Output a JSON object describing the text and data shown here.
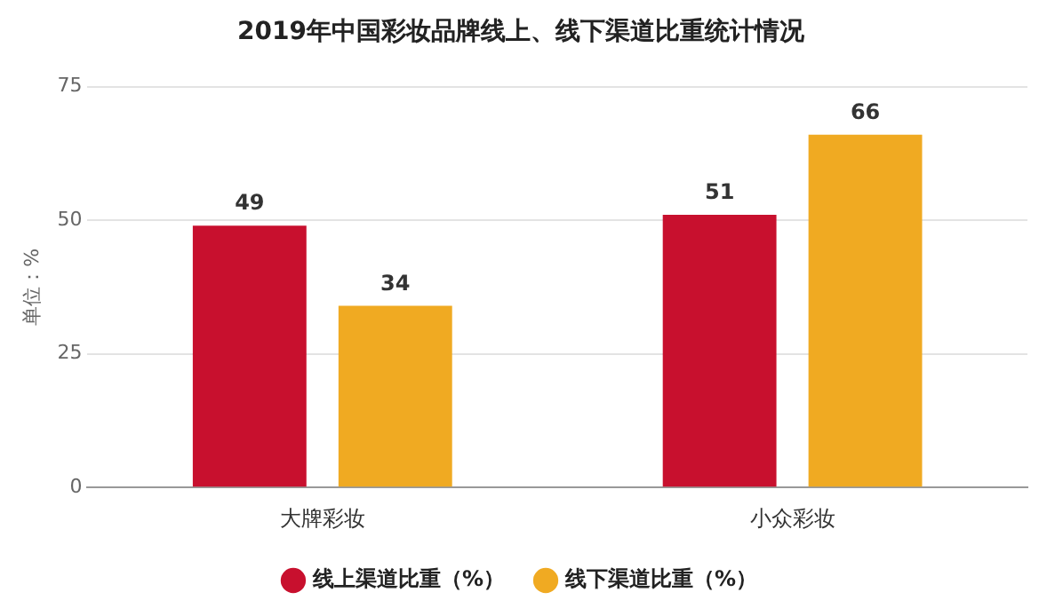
{
  "chart_data": {
    "type": "bar",
    "title": "2019年中国彩妆品牌线上、线下渠道比重统计情况",
    "ylabel": "单位：%",
    "categories": [
      "大牌彩妆",
      "小众彩妆"
    ],
    "series": [
      {
        "name": "线上渠道比重（%）",
        "color": "#c8102e",
        "values": [
          49,
          51
        ]
      },
      {
        "name": "线下渠道比重（%）",
        "color": "#f0aa22",
        "values": [
          34,
          66
        ]
      }
    ],
    "ylim": [
      0,
      75
    ],
    "yticks": [
      0,
      25,
      50,
      75
    ],
    "grid": "y",
    "legend": "bottom",
    "data_labels": true
  }
}
